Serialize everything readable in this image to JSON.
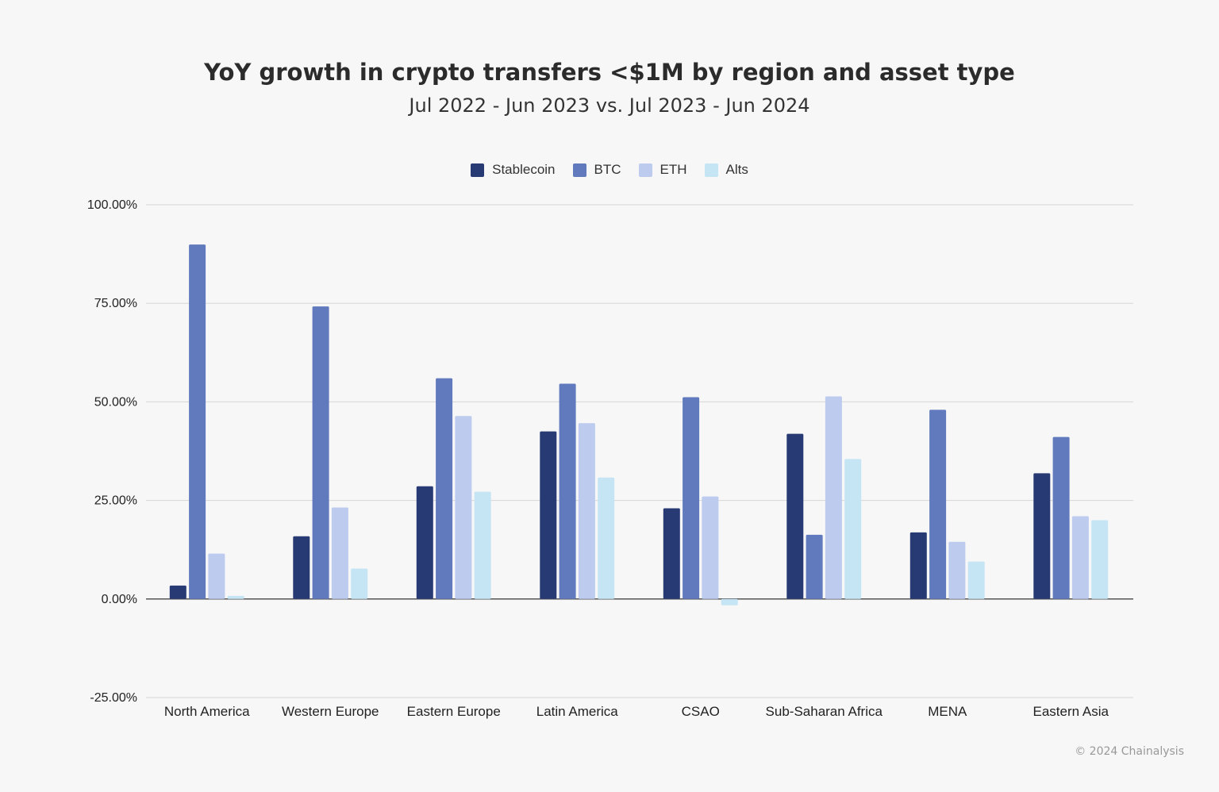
{
  "chart_data": {
    "type": "bar",
    "title": "YoY growth in crypto transfers <$1M by region and asset type",
    "subtitle": "Jul 2022 - Jun 2023 vs. Jul 2023 - Jun 2024",
    "xlabel": "",
    "ylabel": "",
    "ylim": [
      -25,
      100
    ],
    "yticks": [
      "100.00%",
      "75.00%",
      "50.00%",
      "25.00%",
      "0.00%",
      "-25.00%"
    ],
    "grid": true,
    "legend_position": "top",
    "categories": [
      "North America",
      "Western Europe",
      "Eastern Europe",
      "Latin America",
      "CSAO",
      "Sub-Saharan Africa",
      "MENA",
      "Eastern Asia"
    ],
    "series": [
      {
        "name": "Stablecoin",
        "color": "#273a73",
        "values": [
          3.4,
          15.9,
          28.6,
          42.5,
          23.0,
          41.9,
          16.9,
          31.9
        ]
      },
      {
        "name": "BTC",
        "color": "#6179bd",
        "values": [
          89.9,
          74.2,
          56.0,
          54.6,
          51.2,
          16.3,
          48.0,
          41.1
        ]
      },
      {
        "name": "ETH",
        "color": "#bccbee",
        "values": [
          11.5,
          23.2,
          46.4,
          44.6,
          26.0,
          51.4,
          14.5,
          21.0
        ]
      },
      {
        "name": "Alts",
        "color": "#c5e5f5",
        "values": [
          0.8,
          7.7,
          27.2,
          30.8,
          -1.6,
          35.5,
          9.5,
          20.0
        ]
      }
    ]
  },
  "footer": "© 2024 Chainalysis"
}
